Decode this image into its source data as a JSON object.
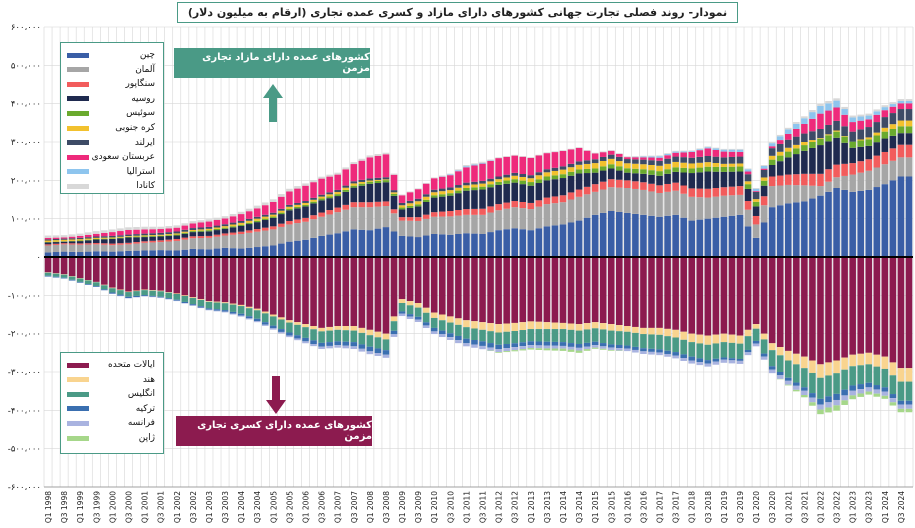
{
  "title": "نمودار- روند فصلی تجارت جهانی کشورهای دارای مازاد و کسری عمده تجاری (ارقام به میلیون دلار)",
  "callouts": {
    "surplus": "کشورهای عمده دارای مازاد تجاری مزمن",
    "deficit": "کشورهای عمده دارای کسری تجاری مزمن"
  },
  "colors": {
    "surplus_callout": "#4a9a86",
    "deficit_callout": "#8c1b4f",
    "surplus_arrow": "#4a9a86",
    "deficit_arrow": "#8c1b4f"
  },
  "chart_data": {
    "type": "bar",
    "stacked": true,
    "ylim": [
      -600000,
      600000
    ],
    "yticks": [
      {
        "value": 600000,
        "label": "۶۰۰،۰۰۰"
      },
      {
        "value": 500000,
        "label": "۵۰۰،۰۰۰"
      },
      {
        "value": 400000,
        "label": "۴۰۰،۰۰۰"
      },
      {
        "value": 300000,
        "label": "۳۰۰،۰۰۰"
      },
      {
        "value": 200000,
        "label": "۲۰۰،۰۰۰"
      },
      {
        "value": 100000,
        "label": "۱۰۰،۰۰۰"
      },
      {
        "value": 0,
        "label": "۰"
      },
      {
        "value": -100000,
        "label": "-۱۰۰،۰۰۰"
      },
      {
        "value": -200000,
        "label": "-۲۰۰،۰۰۰"
      },
      {
        "value": -300000,
        "label": "-۳۰۰،۰۰۰"
      },
      {
        "value": -400000,
        "label": "-۴۰۰،۰۰۰"
      },
      {
        "value": -500000,
        "label": "-۵۰۰،۰۰۰"
      },
      {
        "value": -600000,
        "label": "-۶۰۰،۰۰۰"
      }
    ],
    "categories": [
      "Q1 1998",
      "Q3 1998",
      "Q1 1999",
      "Q3 1999",
      "Q1 2000",
      "Q3 2000",
      "Q1 2001",
      "Q3 2001",
      "Q1 2002",
      "Q3 2002",
      "Q1 2003",
      "Q3 2003",
      "Q1 2004",
      "Q3 2004",
      "Q1 2005",
      "Q3 2005",
      "Q1 2006",
      "Q3 2006",
      "Q1 2007",
      "Q3 2007",
      "Q1 2008",
      "Q3 2008",
      "Q1 2009",
      "Q3 2009",
      "Q1 2010",
      "Q3 2010",
      "Q1 2011",
      "Q3 2011",
      "Q1 2012",
      "Q3 2012",
      "Q1 2013",
      "Q3 2013",
      "Q1 2014",
      "Q3 2014",
      "Q1 2015",
      "Q3 2015",
      "Q1 2016",
      "Q3 2016",
      "Q1 2017",
      "Q3 2017",
      "Q1 2018",
      "Q3 2018",
      "Q1 2019",
      "Q3 2019",
      "Q1 2020",
      "Q3 2020",
      "Q1 2021",
      "Q3 2021",
      "Q1 2022",
      "Q3 2022",
      "Q1 2023",
      "Q3 2023",
      "Q1 2024",
      "Q3 2024"
    ],
    "surplus_series": [
      {
        "name": "چین",
        "color": "#3a5ea6",
        "values": [
          12000,
          14000,
          13000,
          15000,
          14000,
          16000,
          17000,
          18000,
          17000,
          21000,
          20000,
          24000,
          22000,
          26000,
          30000,
          40000,
          45000,
          55000,
          62000,
          72000,
          70000,
          78000,
          55000,
          52000,
          60000,
          58000,
          62000,
          60000,
          70000,
          75000,
          70000,
          80000,
          85000,
          95000,
          110000,
          120000,
          115000,
          110000,
          105000,
          110000,
          95000,
          100000,
          105000,
          110000,
          50000,
          130000,
          140000,
          145000,
          160000,
          180000,
          170000,
          175000,
          190000,
          210000
        ]
      },
      {
        "name": "آلمان",
        "color": "#a6a6a6",
        "values": [
          18000,
          19000,
          19000,
          18000,
          17000,
          17000,
          20000,
          21000,
          25000,
          28000,
          30000,
          32000,
          38000,
          40000,
          42000,
          45000,
          47000,
          50000,
          55000,
          58000,
          60000,
          55000,
          40000,
          42000,
          45000,
          48000,
          48000,
          50000,
          52000,
          55000,
          55000,
          58000,
          58000,
          62000,
          60000,
          62000,
          65000,
          65000,
          62000,
          63000,
          62000,
          55000,
          55000,
          52000,
          35000,
          55000,
          48000,
          42000,
          25000,
          28000,
          45000,
          50000,
          52000,
          50000
        ]
      },
      {
        "name": "سنگاپور",
        "color": "#f25c5c",
        "values": [
          3000,
          3000,
          3500,
          3500,
          4000,
          4000,
          4000,
          4500,
          5000,
          5000,
          5000,
          5500,
          6000,
          7000,
          8000,
          9000,
          10000,
          11000,
          12000,
          13000,
          13000,
          12000,
          9000,
          10000,
          12000,
          14000,
          15000,
          16000,
          16000,
          16000,
          16000,
          17000,
          18000,
          19000,
          20000,
          21000,
          20000,
          20000,
          20000,
          21000,
          22000,
          23000,
          22000,
          23000,
          22000,
          25000,
          27000,
          30000,
          32000,
          33000,
          30000,
          30000,
          32000,
          33000
        ]
      },
      {
        "name": "روسیه",
        "color": "#1f2a4f",
        "values": [
          5000,
          4000,
          6000,
          9000,
          12000,
          14000,
          11000,
          10000,
          9000,
          11000,
          12000,
          12000,
          15000,
          18000,
          22000,
          28000,
          30000,
          32000,
          30000,
          38000,
          48000,
          50000,
          20000,
          28000,
          38000,
          40000,
          48000,
          50000,
          50000,
          48000,
          45000,
          45000,
          45000,
          42000,
          30000,
          28000,
          20000,
          22000,
          25000,
          28000,
          40000,
          45000,
          40000,
          38000,
          25000,
          30000,
          45000,
          60000,
          75000,
          70000,
          40000,
          35000,
          35000,
          30000
        ]
      },
      {
        "name": "سوئیس",
        "color": "#6aaa2e",
        "values": [
          1000,
          1000,
          1500,
          1500,
          1500,
          1500,
          2000,
          2000,
          2500,
          2500,
          3000,
          3000,
          3000,
          3500,
          3500,
          4000,
          4000,
          4500,
          5000,
          5000,
          5500,
          5500,
          5000,
          5500,
          6000,
          6500,
          7000,
          7500,
          8000,
          9000,
          9500,
          10000,
          10000,
          10500,
          11000,
          11000,
          11500,
          12000,
          12000,
          12000,
          12000,
          12500,
          13000,
          13000,
          12000,
          14000,
          15000,
          15000,
          16000,
          16000,
          16000,
          17000,
          18000,
          18000
        ]
      },
      {
        "name": "کره جنوبی",
        "color": "#f2c12e",
        "values": [
          4000,
          4000,
          3500,
          3000,
          2500,
          2000,
          2500,
          2500,
          3000,
          3000,
          3500,
          4000,
          5000,
          5500,
          5000,
          5000,
          5000,
          5000,
          5500,
          6000,
          3000,
          2000,
          6000,
          8000,
          8000,
          8000,
          7000,
          8000,
          7000,
          9000,
          10000,
          11000,
          12000,
          12000,
          14000,
          14000,
          13000,
          13000,
          14000,
          14000,
          13000,
          12000,
          8000,
          8000,
          7000,
          10000,
          10000,
          8000,
          2000,
          3000,
          0,
          5000,
          10000,
          15000
        ]
      },
      {
        "name": "ایرلند",
        "color": "#3d4b66",
        "values": [
          3000,
          3000,
          3500,
          3500,
          4000,
          4000,
          4500,
          5000,
          5000,
          5000,
          5000,
          5000,
          5000,
          5000,
          5000,
          5000,
          5000,
          5000,
          5500,
          5500,
          5500,
          5500,
          6000,
          6500,
          6500,
          7000,
          7000,
          7000,
          7000,
          7500,
          8000,
          8000,
          8500,
          9000,
          10000,
          11000,
          11000,
          12000,
          13000,
          14000,
          15000,
          16000,
          17000,
          18000,
          19000,
          20000,
          21000,
          22000,
          24000,
          25000,
          26000,
          27000,
          28000,
          30000
        ]
      },
      {
        "name": "عربستان سعودی",
        "color": "#ee2a7b",
        "values": [
          4000,
          3000,
          5000,
          7000,
          10000,
          12000,
          11000,
          10000,
          10000,
          12000,
          14000,
          15000,
          18000,
          22000,
          28000,
          35000,
          40000,
          42000,
          40000,
          45000,
          55000,
          60000,
          20000,
          25000,
          30000,
          32000,
          40000,
          45000,
          48000,
          45000,
          45000,
          42000,
          40000,
          35000,
          15000,
          10000,
          5000,
          6000,
          8000,
          10000,
          15000,
          20000,
          15000,
          12000,
          2000,
          5000,
          15000,
          25000,
          40000,
          35000,
          25000,
          20000,
          18000,
          15000
        ]
      },
      {
        "name": "استرالیا",
        "color": "#8ec5ee",
        "values": [
          0,
          0,
          0,
          0,
          0,
          0,
          0,
          0,
          0,
          0,
          0,
          0,
          0,
          0,
          0,
          0,
          0,
          0,
          0,
          0,
          0,
          0,
          0,
          0,
          0,
          2000,
          3000,
          2000,
          0,
          0,
          0,
          0,
          0,
          0,
          0,
          0,
          0,
          2000,
          4000,
          3000,
          2000,
          3000,
          5000,
          6000,
          6000,
          8000,
          12000,
          15000,
          20000,
          18000,
          12000,
          10000,
          8000,
          6000
        ]
      },
      {
        "name": "کانادا",
        "color": "#d8d8d8",
        "values": [
          6000,
          6000,
          6000,
          7000,
          7000,
          7000,
          7000,
          6000,
          6000,
          6000,
          6000,
          6000,
          6000,
          7000,
          7000,
          7000,
          6000,
          5000,
          5000,
          5000,
          5000,
          4000,
          2000,
          2000,
          2000,
          2000,
          3000,
          3000,
          2000,
          2000,
          2000,
          2000,
          2000,
          2000,
          2000,
          2000,
          2000,
          2000,
          2000,
          2000,
          2000,
          2000,
          2000,
          2000,
          2000,
          3000,
          4000,
          5000,
          6000,
          6000,
          5000,
          5000,
          5000,
          5000
        ]
      }
    ],
    "deficit_series": [
      {
        "name": "ایالات متحده",
        "color": "#8c1b4f",
        "values": [
          40000,
          45000,
          55000,
          65000,
          80000,
          90000,
          85000,
          88000,
          95000,
          105000,
          115000,
          118000,
          125000,
          135000,
          150000,
          165000,
          175000,
          185000,
          180000,
          180000,
          190000,
          200000,
          110000,
          120000,
          145000,
          155000,
          165000,
          170000,
          175000,
          172000,
          168000,
          170000,
          172000,
          175000,
          170000,
          175000,
          180000,
          185000,
          185000,
          190000,
          200000,
          205000,
          200000,
          205000,
          175000,
          225000,
          245000,
          260000,
          280000,
          270000,
          255000,
          250000,
          260000,
          290000
        ]
      },
      {
        "name": "هند",
        "color": "#f9d48f",
        "values": [
          1000,
          1000,
          1000,
          1000,
          1500,
          1500,
          1500,
          1500,
          1500,
          2000,
          2000,
          2500,
          3000,
          4000,
          5000,
          6000,
          8000,
          9000,
          10000,
          12000,
          14000,
          15000,
          10000,
          12000,
          14000,
          16000,
          18000,
          20000,
          22000,
          21000,
          20000,
          18000,
          16000,
          17000,
          16000,
          17000,
          15000,
          16000,
          18000,
          20000,
          22000,
          24000,
          22000,
          21000,
          12000,
          18000,
          25000,
          30000,
          35000,
          33000,
          30000,
          30000,
          32000,
          35000
        ]
      },
      {
        "name": "انگلیس",
        "color": "#4a9a86",
        "values": [
          8000,
          8000,
          9000,
          10000,
          11000,
          12000,
          13000,
          14000,
          15000,
          16000,
          17000,
          18000,
          20000,
          22000,
          24000,
          26000,
          28000,
          30000,
          30000,
          30000,
          30000,
          28000,
          22000,
          24000,
          26000,
          28000,
          30000,
          30000,
          32000,
          32000,
          32000,
          33000,
          34000,
          35000,
          35000,
          36000,
          36000,
          37000,
          38000,
          38000,
          38000,
          40000,
          40000,
          40000,
          32000,
          42000,
          45000,
          50000,
          55000,
          54000,
          50000,
          48000,
          48000,
          50000
        ]
      },
      {
        "name": "ترکیه",
        "color": "#3a6fb0",
        "values": [
          2000,
          2000,
          2000,
          2000,
          3000,
          3500,
          2500,
          2000,
          2500,
          3000,
          3500,
          4000,
          5000,
          6000,
          7000,
          8000,
          9000,
          10000,
          10000,
          11000,
          12000,
          12000,
          6000,
          7000,
          9000,
          10000,
          12000,
          12000,
          11000,
          10000,
          10000,
          10000,
          10000,
          10000,
          9000,
          8000,
          8000,
          8000,
          8000,
          9000,
          10000,
          9000,
          6000,
          5000,
          7000,
          9000,
          8000,
          9000,
          15000,
          16000,
          14000,
          12000,
          11000,
          10000
        ]
      },
      {
        "name": "فرانسه",
        "color": "#a9b3e0",
        "values": [
          0,
          0,
          0,
          0,
          1000,
          1000,
          1000,
          1000,
          1000,
          1500,
          1500,
          2000,
          2500,
          3000,
          3500,
          4000,
          5000,
          6000,
          6500,
          7000,
          7500,
          8000,
          6000,
          6500,
          7000,
          7500,
          8000,
          8500,
          8000,
          8000,
          7500,
          7500,
          7000,
          7000,
          6500,
          6500,
          6500,
          7000,
          7000,
          7500,
          8000,
          8000,
          8000,
          8000,
          7000,
          9000,
          10000,
          11000,
          13000,
          14000,
          12000,
          11000,
          11000,
          11000
        ]
      },
      {
        "name": "ژاپن",
        "color": "#a6d78a",
        "values": [
          0,
          0,
          0,
          0,
          0,
          0,
          0,
          0,
          0,
          0,
          0,
          0,
          0,
          0,
          0,
          0,
          0,
          0,
          0,
          0,
          0,
          0,
          0,
          0,
          0,
          0,
          0,
          0,
          2000,
          3000,
          4000,
          5000,
          6000,
          6000,
          3000,
          2000,
          0,
          0,
          0,
          0,
          0,
          0,
          0,
          0,
          0,
          0,
          2000,
          6000,
          12000,
          14000,
          10000,
          8000,
          8000,
          9000
        ]
      }
    ]
  }
}
